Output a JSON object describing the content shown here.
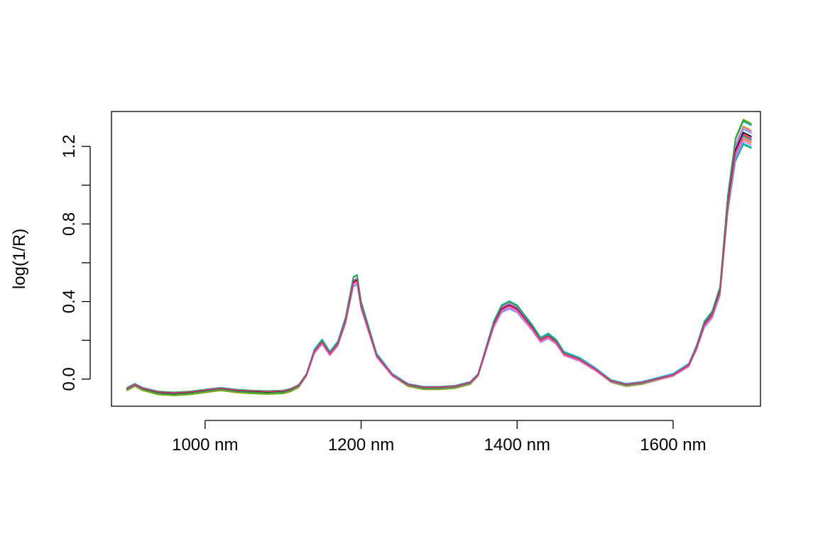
{
  "chart_data": {
    "type": "line",
    "title": "",
    "xlabel": "",
    "ylabel": "log(1/R)",
    "xlim": [
      880,
      1712
    ],
    "ylim": [
      -0.14,
      1.38
    ],
    "x_ticks": [
      {
        "value": 1000,
        "label": "1000 nm"
      },
      {
        "value": 1200,
        "label": "1200 nm"
      },
      {
        "value": 1400,
        "label": "1400 nm"
      },
      {
        "value": 1600,
        "label": "1600 nm"
      }
    ],
    "y_ticks": [
      {
        "value": 0.0,
        "label": "0.0"
      },
      {
        "value": 0.2,
        "label": ""
      },
      {
        "value": 0.4,
        "label": "0.4"
      },
      {
        "value": 0.6,
        "label": ""
      },
      {
        "value": 0.8,
        "label": "0.8"
      },
      {
        "value": 1.0,
        "label": ""
      },
      {
        "value": 1.2,
        "label": "1.2"
      }
    ],
    "grid": false,
    "legend": "none",
    "base_spectrum": {
      "x": [
        900,
        910,
        920,
        940,
        960,
        980,
        1000,
        1020,
        1040,
        1060,
        1080,
        1100,
        1110,
        1120,
        1130,
        1140,
        1150,
        1160,
        1170,
        1180,
        1190,
        1195,
        1200,
        1210,
        1220,
        1240,
        1260,
        1280,
        1300,
        1320,
        1340,
        1350,
        1360,
        1370,
        1380,
        1390,
        1400,
        1410,
        1420,
        1430,
        1440,
        1450,
        1460,
        1480,
        1500,
        1520,
        1540,
        1560,
        1580,
        1600,
        1620,
        1630,
        1640,
        1650,
        1660,
        1670,
        1680,
        1690,
        1700
      ],
      "y": [
        -0.05,
        -0.03,
        -0.05,
        -0.07,
        -0.075,
        -0.07,
        -0.06,
        -0.05,
        -0.06,
        -0.065,
        -0.068,
        -0.065,
        -0.055,
        -0.035,
        0.02,
        0.14,
        0.19,
        0.13,
        0.18,
        0.3,
        0.5,
        0.51,
        0.38,
        0.25,
        0.12,
        0.02,
        -0.03,
        -0.045,
        -0.045,
        -0.04,
        -0.02,
        0.02,
        0.15,
        0.28,
        0.36,
        0.38,
        0.36,
        0.31,
        0.26,
        0.2,
        0.22,
        0.19,
        0.13,
        0.1,
        0.05,
        -0.01,
        -0.03,
        -0.02,
        0.0,
        0.02,
        0.07,
        0.16,
        0.28,
        0.33,
        0.45,
        0.9,
        1.18,
        1.27,
        1.25
      ]
    },
    "series": [
      {
        "color": "#F8766D",
        "scale": 1.0,
        "offset": 0.0
      },
      {
        "color": "#E58700",
        "scale": 0.97,
        "offset": 0.004
      },
      {
        "color": "#C99800",
        "scale": 1.03,
        "offset": -0.004
      },
      {
        "color": "#A3A500",
        "scale": 0.98,
        "offset": 0.006
      },
      {
        "color": "#6BB100",
        "scale": 1.06,
        "offset": -0.006
      },
      {
        "color": "#00BA38",
        "scale": 0.95,
        "offset": 0.003
      },
      {
        "color": "#00BF7D",
        "scale": 1.02,
        "offset": 0.001
      },
      {
        "color": "#00C0AF",
        "scale": 0.99,
        "offset": -0.002
      },
      {
        "color": "#00BCD8",
        "scale": 1.04,
        "offset": 0.008
      },
      {
        "color": "#00B0F6",
        "scale": 0.96,
        "offset": -0.003
      },
      {
        "color": "#619CFF",
        "scale": 1.01,
        "offset": 0.005
      },
      {
        "color": "#B983FF",
        "scale": 0.97,
        "offset": -0.005
      },
      {
        "color": "#E76BF3",
        "scale": 1.02,
        "offset": 0.002
      },
      {
        "color": "#FD61D1",
        "scale": 0.98,
        "offset": -0.001
      },
      {
        "color": "#FF67A4",
        "scale": 1.0,
        "offset": -0.004
      },
      {
        "color": "#000000",
        "scale": 1.0,
        "offset": 0.002
      },
      {
        "color": "#2C9E4B",
        "scale": 1.05,
        "offset": 0.0
      },
      {
        "color": "#D6336C",
        "scale": 0.99,
        "offset": 0.003
      }
    ]
  }
}
